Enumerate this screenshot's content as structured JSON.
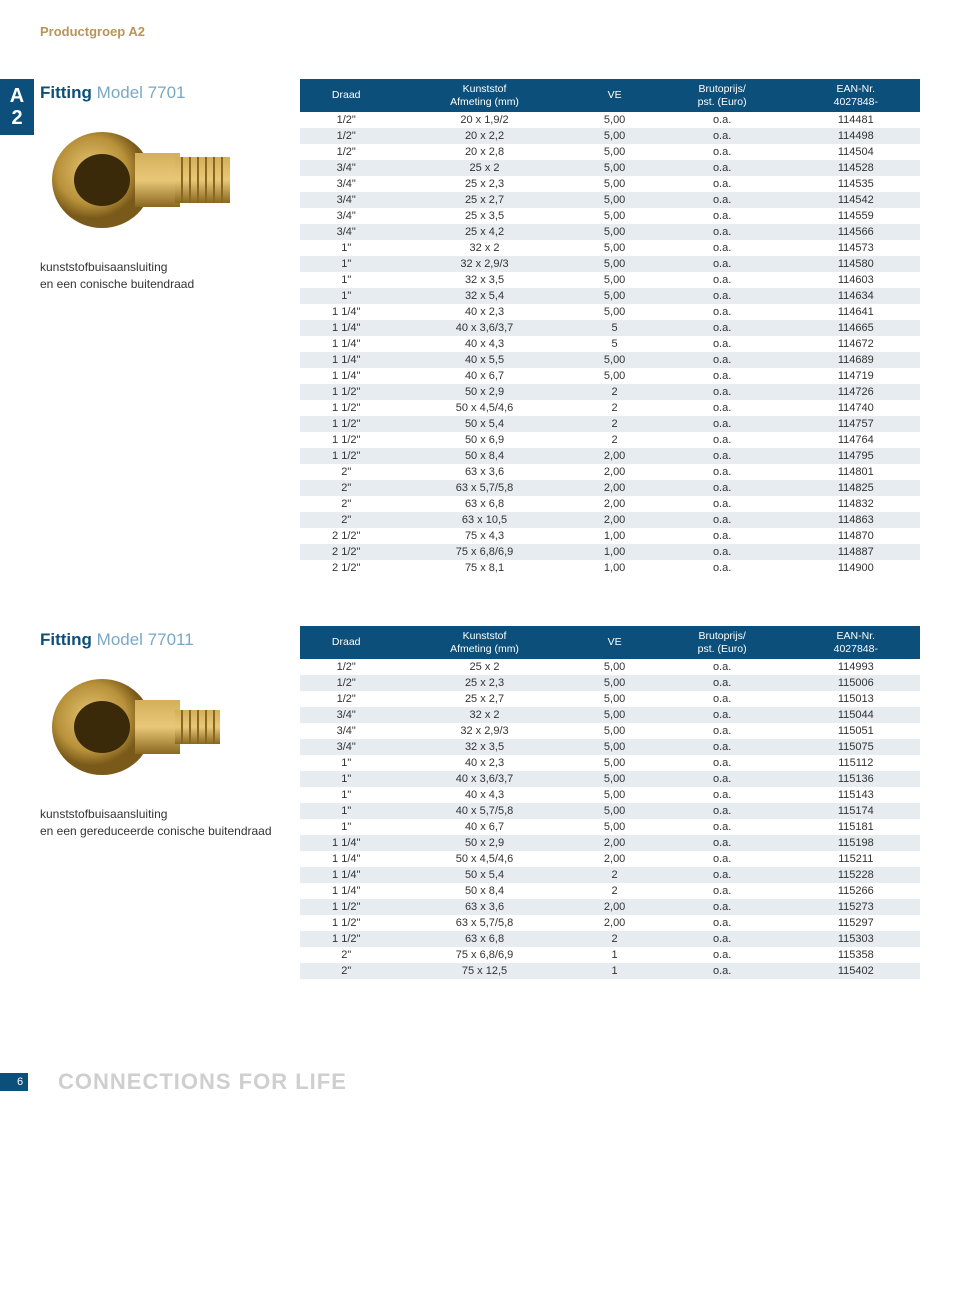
{
  "productGroup": "Productgroep A2",
  "badge": {
    "l1": "A",
    "l2": "2"
  },
  "section1": {
    "titlePrefix": "Fitting",
    "titleModel": "Model 7701",
    "desc1": "kunststofbuisaansluiting",
    "desc2": "en een conische buitendraad",
    "headers": [
      "Draad",
      "Kunststof\nAfmeting (mm)",
      "VE",
      "Brutoprijs/\npst. (Euro)",
      "EAN-Nr.\n4027848-"
    ],
    "rows": [
      [
        "1/2\"",
        "20 x 1,9/2",
        "5,00",
        "o.a.",
        "114481"
      ],
      [
        "1/2\"",
        "20 x 2,2",
        "5,00",
        "o.a.",
        "114498"
      ],
      [
        "1/2\"",
        "20 x 2,8",
        "5,00",
        "o.a.",
        "114504"
      ],
      [
        "3/4\"",
        "25 x 2",
        "5,00",
        "o.a.",
        "114528"
      ],
      [
        "3/4\"",
        "25 x 2,3",
        "5,00",
        "o.a.",
        "114535"
      ],
      [
        "3/4\"",
        "25 x 2,7",
        "5,00",
        "o.a.",
        "114542"
      ],
      [
        "3/4\"",
        "25 x 3,5",
        "5,00",
        "o.a.",
        "114559"
      ],
      [
        "3/4\"",
        "25 x 4,2",
        "5,00",
        "o.a.",
        "114566"
      ],
      [
        "1\"",
        "32 x 2",
        "5,00",
        "o.a.",
        "114573"
      ],
      [
        "1\"",
        "32 x 2,9/3",
        "5,00",
        "o.a.",
        "114580"
      ],
      [
        "1\"",
        "32 x 3,5",
        "5,00",
        "o.a.",
        "114603"
      ],
      [
        "1\"",
        "32 x 5,4",
        "5,00",
        "o.a.",
        "114634"
      ],
      [
        "1 1/4\"",
        "40 x 2,3",
        "5,00",
        "o.a.",
        "114641"
      ],
      [
        "1 1/4\"",
        "40 x 3,6/3,7",
        "5",
        "o.a.",
        "114665"
      ],
      [
        "1 1/4\"",
        "40 x 4,3",
        "5",
        "o.a.",
        "114672"
      ],
      [
        "1 1/4\"",
        "40 x 5,5",
        "5,00",
        "o.a.",
        "114689"
      ],
      [
        "1 1/4\"",
        "40 x 6,7",
        "5,00",
        "o.a.",
        "114719"
      ],
      [
        "1 1/2\"",
        "50 x 2,9",
        "2",
        "o.a.",
        "114726"
      ],
      [
        "1 1/2\"",
        "50 x 4,5/4,6",
        "2",
        "o.a.",
        "114740"
      ],
      [
        "1 1/2\"",
        "50 x 5,4",
        "2",
        "o.a.",
        "114757"
      ],
      [
        "1 1/2\"",
        "50 x 6,9",
        "2",
        "o.a.",
        "114764"
      ],
      [
        "1 1/2\"",
        "50 x 8,4",
        "2,00",
        "o.a.",
        "114795"
      ],
      [
        "2\"",
        "63 x 3,6",
        "2,00",
        "o.a.",
        "114801"
      ],
      [
        "2\"",
        "63 x 5,7/5,8",
        "2,00",
        "o.a.",
        "114825"
      ],
      [
        "2\"",
        "63 x 6,8",
        "2,00",
        "o.a.",
        "114832"
      ],
      [
        "2\"",
        "63 x 10,5",
        "2,00",
        "o.a.",
        "114863"
      ],
      [
        "2 1/2\"",
        "75 x 4,3",
        "1,00",
        "o.a.",
        "114870"
      ],
      [
        "2 1/2\"",
        "75 x 6,8/6,9",
        "1,00",
        "o.a.",
        "114887"
      ],
      [
        "2 1/2\"",
        "75 x 8,1",
        "1,00",
        "o.a.",
        "114900"
      ]
    ]
  },
  "section2": {
    "titlePrefix": "Fitting",
    "titleModel": "Model 77011",
    "desc1": "kunststofbuisaansluiting",
    "desc2": "en een gereduceerde conische buitendraad",
    "headers": [
      "Draad",
      "Kunststof\nAfmeting (mm)",
      "VE",
      "Brutoprijs/\npst. (Euro)",
      "EAN-Nr.\n4027848-"
    ],
    "rows": [
      [
        "1/2\"",
        "25 x 2",
        "5,00",
        "o.a.",
        "114993"
      ],
      [
        "1/2\"",
        "25 x 2,3",
        "5,00",
        "o.a.",
        "115006"
      ],
      [
        "1/2\"",
        "25 x 2,7",
        "5,00",
        "o.a.",
        "115013"
      ],
      [
        "3/4\"",
        "32 x 2",
        "5,00",
        "o.a.",
        "115044"
      ],
      [
        "3/4\"",
        "32 x 2,9/3",
        "5,00",
        "o.a.",
        "115051"
      ],
      [
        "3/4\"",
        "32 x 3,5",
        "5,00",
        "o.a.",
        "115075"
      ],
      [
        "1\"",
        "40 x 2,3",
        "5,00",
        "o.a.",
        "115112"
      ],
      [
        "1\"",
        "40 x 3,6/3,7",
        "5,00",
        "o.a.",
        "115136"
      ],
      [
        "1\"",
        "40 x 4,3",
        "5,00",
        "o.a.",
        "115143"
      ],
      [
        "1\"",
        "40 x 5,7/5,8",
        "5,00",
        "o.a.",
        "115174"
      ],
      [
        "1\"",
        "40 x 6,7",
        "5,00",
        "o.a.",
        "115181"
      ],
      [
        "1 1/4\"",
        "50 x 2,9",
        "2,00",
        "o.a.",
        "115198"
      ],
      [
        "1 1/4\"",
        "50 x 4,5/4,6",
        "2,00",
        "o.a.",
        "115211"
      ],
      [
        "1 1/4\"",
        "50 x 5,4",
        "2",
        "o.a.",
        "115228"
      ],
      [
        "1 1/4\"",
        "50 x 8,4",
        "2",
        "o.a.",
        "115266"
      ],
      [
        "1 1/2\"",
        "63 x 3,6",
        "2,00",
        "o.a.",
        "115273"
      ],
      [
        "1 1/2\"",
        "63 x 5,7/5,8",
        "2,00",
        "o.a.",
        "115297"
      ],
      [
        "1 1/2\"",
        "63 x 6,8",
        "2",
        "o.a.",
        "115303"
      ],
      [
        "2\"",
        "75 x 6,8/6,9",
        "1",
        "o.a.",
        "115358"
      ],
      [
        "2\"",
        "75 x 12,5",
        "1",
        "o.a.",
        "115402"
      ]
    ]
  },
  "footer": {
    "page": "6",
    "tagline": "CONNECTIONS FOR LIFE"
  },
  "colors": {
    "brand": "#0b4f7a",
    "gold": "#b89556",
    "altRow": "#e6ecef",
    "tagline": "#cfcfcf"
  }
}
